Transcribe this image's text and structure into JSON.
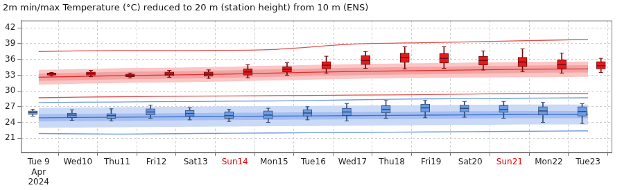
{
  "chart_data": {
    "type": "boxplot",
    "title": "2m min/max Temperature (°C) reduced to 20 m (station height) from 10 m (ENS)",
    "xlim": [
      -0.45,
      14.6
    ],
    "xticks": [
      {
        "value": 0,
        "label": [
          "Tue 9",
          "Apr",
          "2024"
        ]
      },
      {
        "value": 1,
        "label": "Wed10"
      },
      {
        "value": 2,
        "label": "Thu11"
      },
      {
        "value": 3,
        "label": "Fri12"
      },
      {
        "value": 4,
        "label": "Sat13"
      },
      {
        "value": 5,
        "label": "Sun14",
        "color": "#e00000"
      },
      {
        "value": 6,
        "label": "Mon15"
      },
      {
        "value": 7,
        "label": "Tue16"
      },
      {
        "value": 8,
        "label": "Wed17"
      },
      {
        "value": 9,
        "label": "Thu18"
      },
      {
        "value": 10,
        "label": "Fri19"
      },
      {
        "value": 11,
        "label": "Sat20"
      },
      {
        "value": 12,
        "label": "Sun21",
        "color": "#e00000"
      },
      {
        "value": 13,
        "label": "Mon22"
      },
      {
        "value": 14,
        "label": "Tue23"
      }
    ],
    "ylim": [
      18.3,
      43.4
    ],
    "yticks": [
      21,
      24,
      27,
      30,
      33,
      36,
      39,
      42
    ],
    "grid": true,
    "series": [
      {
        "type": "band",
        "color": "#fbc6c6",
        "x": [
          0,
          2,
          4,
          6,
          8,
          10,
          12,
          14
        ],
        "lower": [
          31.2,
          31.5,
          31.7,
          32.0,
          32.3,
          32.5,
          32.6,
          32.7
        ],
        "upper": [
          34.0,
          34.3,
          34.5,
          34.8,
          35.1,
          35.3,
          35.5,
          35.6
        ]
      },
      {
        "type": "band",
        "color": "#f4a3a3",
        "x": [
          0,
          2,
          4,
          6,
          8,
          10,
          12,
          14
        ],
        "lower": [
          31.9,
          32.2,
          32.4,
          32.7,
          33.0,
          33.2,
          33.4,
          33.5
        ],
        "upper": [
          33.3,
          33.6,
          33.8,
          34.1,
          34.4,
          34.6,
          34.8,
          34.9
        ]
      },
      {
        "type": "band",
        "color": "#cad9f6",
        "x": [
          0,
          2,
          4,
          6,
          8,
          10,
          12,
          14
        ],
        "lower": [
          23.0,
          23.1,
          23.2,
          23.3,
          23.4,
          23.5,
          23.6,
          23.6
        ],
        "upper": [
          26.8,
          26.9,
          27.0,
          27.1,
          27.2,
          27.3,
          27.4,
          27.4
        ]
      },
      {
        "type": "band",
        "color": "#a4bef0",
        "x": [
          0,
          2,
          4,
          6,
          8,
          10,
          12,
          14
        ],
        "lower": [
          24.2,
          24.3,
          24.4,
          24.5,
          24.6,
          24.7,
          24.8,
          24.8
        ],
        "upper": [
          25.6,
          25.7,
          25.8,
          25.9,
          26.0,
          26.1,
          26.2,
          26.2
        ]
      },
      {
        "type": "line",
        "color": "#e03030",
        "x": [
          0,
          2,
          4,
          6,
          8,
          10,
          12,
          14
        ],
        "values": [
          32.6,
          32.9,
          33.1,
          33.4,
          33.7,
          33.9,
          34.1,
          34.2
        ]
      },
      {
        "type": "line",
        "color": "#e05050",
        "x": [
          0,
          2,
          4,
          6,
          8,
          10,
          12,
          14
        ],
        "values": [
          37.5,
          37.7,
          37.7,
          37.9,
          38.9,
          39.2,
          39.5,
          39.8
        ]
      },
      {
        "type": "line",
        "color": "#e05050",
        "x": [
          0,
          2,
          4,
          6,
          8,
          10,
          12,
          14
        ],
        "values": [
          28.7,
          28.9,
          29.0,
          29.1,
          29.2,
          29.3,
          29.5,
          29.5
        ]
      },
      {
        "type": "line",
        "color": "#3f72d6",
        "x": [
          0,
          2,
          4,
          6,
          8,
          10,
          12,
          14
        ],
        "values": [
          24.9,
          25.0,
          25.1,
          25.2,
          25.3,
          25.4,
          25.5,
          25.5
        ]
      },
      {
        "type": "line",
        "color": "#6f98e6",
        "x": [
          0,
          2,
          4,
          6,
          8,
          10,
          12,
          14
        ],
        "values": [
          27.8,
          27.9,
          28.0,
          28.1,
          28.3,
          28.5,
          28.6,
          28.7
        ]
      },
      {
        "type": "line",
        "color": "#6f98e6",
        "x": [
          0,
          2,
          4,
          6,
          8,
          10,
          12,
          14
        ],
        "values": [
          21.9,
          21.8,
          21.9,
          22.0,
          22.1,
          22.2,
          22.3,
          22.4
        ]
      },
      {
        "type": "boxplot",
        "color": "#e41a1c",
        "x": [
          0.33,
          1.33,
          2.33,
          3.33,
          4.33,
          5.33,
          6.33,
          7.33,
          8.33,
          9.33,
          10.33,
          11.33,
          12.33,
          13.33,
          14.33
        ],
        "min": [
          32.9,
          32.7,
          32.5,
          32.6,
          32.4,
          32.5,
          33.0,
          33.4,
          34.3,
          34.2,
          34.3,
          34.0,
          33.7,
          33.4,
          33.5
        ],
        "q1": [
          33.0,
          33.0,
          32.7,
          32.9,
          32.8,
          33.0,
          33.6,
          34.2,
          35.0,
          35.4,
          35.3,
          34.9,
          34.6,
          34.2,
          34.2
        ],
        "median": [
          33.25,
          33.3,
          33.0,
          33.2,
          33.2,
          33.6,
          34.1,
          34.9,
          35.8,
          36.4,
          36.2,
          35.8,
          35.5,
          35.0,
          34.8
        ],
        "q3": [
          33.4,
          33.6,
          33.2,
          33.6,
          33.6,
          34.2,
          34.6,
          35.6,
          36.7,
          37.2,
          37.1,
          36.6,
          36.4,
          35.9,
          35.6
        ],
        "max": [
          33.5,
          33.9,
          33.4,
          33.9,
          34.0,
          35.0,
          35.4,
          36.6,
          37.5,
          38.4,
          38.4,
          37.6,
          38.0,
          37.2,
          36.2
        ]
      },
      {
        "type": "boxplot",
        "color": "#6a9be8",
        "x": [
          -0.15,
          0.85,
          1.85,
          2.85,
          3.85,
          4.85,
          5.85,
          6.85,
          7.85,
          8.85,
          9.85,
          10.85,
          11.85,
          12.85,
          13.85
        ],
        "min": [
          25.2,
          24.4,
          24.3,
          24.8,
          24.5,
          24.2,
          24.0,
          24.5,
          24.3,
          24.8,
          24.9,
          25.0,
          24.8,
          24.0,
          23.8
        ],
        "q1": [
          25.5,
          24.9,
          24.8,
          25.4,
          25.2,
          24.8,
          24.7,
          25.2,
          25.3,
          25.8,
          26.0,
          26.0,
          25.9,
          25.4,
          25.2
        ],
        "median": [
          25.9,
          25.4,
          25.3,
          26.0,
          25.7,
          25.3,
          25.4,
          25.8,
          26.0,
          26.5,
          26.8,
          26.7,
          26.5,
          26.2,
          26.1
        ],
        "q3": [
          26.2,
          25.8,
          25.7,
          26.6,
          26.3,
          26.0,
          26.2,
          26.4,
          26.7,
          27.2,
          27.5,
          27.3,
          27.2,
          27.0,
          27.0
        ],
        "max": [
          26.5,
          26.4,
          26.6,
          27.3,
          26.8,
          26.5,
          26.7,
          27.0,
          27.6,
          28.2,
          28.2,
          28.0,
          28.0,
          27.8,
          27.6
        ]
      }
    ]
  }
}
